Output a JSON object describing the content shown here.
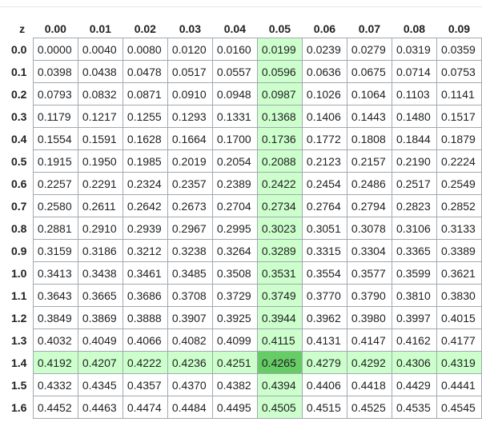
{
  "table": {
    "corner_label": "z",
    "col_headers": [
      "0.00",
      "0.01",
      "0.02",
      "0.03",
      "0.04",
      "0.05",
      "0.06",
      "0.07",
      "0.08",
      "0.09"
    ],
    "highlight": {
      "column_index": 5,
      "row_index": 14,
      "color_light": "#ccffcc",
      "color_strong": "#66cc66"
    },
    "rows": [
      {
        "z": "0.0",
        "values": [
          "0.0000",
          "0.0040",
          "0.0080",
          "0.0120",
          "0.0160",
          "0.0199",
          "0.0239",
          "0.0279",
          "0.0319",
          "0.0359"
        ]
      },
      {
        "z": "0.1",
        "values": [
          "0.0398",
          "0.0438",
          "0.0478",
          "0.0517",
          "0.0557",
          "0.0596",
          "0.0636",
          "0.0675",
          "0.0714",
          "0.0753"
        ]
      },
      {
        "z": "0.2",
        "values": [
          "0.0793",
          "0.0832",
          "0.0871",
          "0.0910",
          "0.0948",
          "0.0987",
          "0.1026",
          "0.1064",
          "0.1103",
          "0.1141"
        ]
      },
      {
        "z": "0.3",
        "values": [
          "0.1179",
          "0.1217",
          "0.1255",
          "0.1293",
          "0.1331",
          "0.1368",
          "0.1406",
          "0.1443",
          "0.1480",
          "0.1517"
        ]
      },
      {
        "z": "0.4",
        "values": [
          "0.1554",
          "0.1591",
          "0.1628",
          "0.1664",
          "0.1700",
          "0.1736",
          "0.1772",
          "0.1808",
          "0.1844",
          "0.1879"
        ]
      },
      {
        "z": "0.5",
        "values": [
          "0.1915",
          "0.1950",
          "0.1985",
          "0.2019",
          "0.2054",
          "0.2088",
          "0.2123",
          "0.2157",
          "0.2190",
          "0.2224"
        ]
      },
      {
        "z": "0.6",
        "values": [
          "0.2257",
          "0.2291",
          "0.2324",
          "0.2357",
          "0.2389",
          "0.2422",
          "0.2454",
          "0.2486",
          "0.2517",
          "0.2549"
        ]
      },
      {
        "z": "0.7",
        "values": [
          "0.2580",
          "0.2611",
          "0.2642",
          "0.2673",
          "0.2704",
          "0.2734",
          "0.2764",
          "0.2794",
          "0.2823",
          "0.2852"
        ]
      },
      {
        "z": "0.8",
        "values": [
          "0.2881",
          "0.2910",
          "0.2939",
          "0.2967",
          "0.2995",
          "0.3023",
          "0.3051",
          "0.3078",
          "0.3106",
          "0.3133"
        ]
      },
      {
        "z": "0.9",
        "values": [
          "0.3159",
          "0.3186",
          "0.3212",
          "0.3238",
          "0.3264",
          "0.3289",
          "0.3315",
          "0.3304",
          "0.3365",
          "0.3389"
        ]
      },
      {
        "z": "1.0",
        "values": [
          "0.3413",
          "0.3438",
          "0.3461",
          "0.3485",
          "0.3508",
          "0.3531",
          "0.3554",
          "0.3577",
          "0.3599",
          "0.3621"
        ]
      },
      {
        "z": "1.1",
        "values": [
          "0.3643",
          "0.3665",
          "0.3686",
          "0.3708",
          "0.3729",
          "0.3749",
          "0.3770",
          "0.3790",
          "0.3810",
          "0.3830"
        ]
      },
      {
        "z": "1.2",
        "values": [
          "0.3849",
          "0.3869",
          "0.3888",
          "0.3907",
          "0.3925",
          "0.3944",
          "0.3962",
          "0.3980",
          "0.3997",
          "0.4015"
        ]
      },
      {
        "z": "1.3",
        "values": [
          "0.4032",
          "0.4049",
          "0.4066",
          "0.4082",
          "0.4099",
          "0.4115",
          "0.4131",
          "0.4147",
          "0.4162",
          "0.4177"
        ]
      },
      {
        "z": "1.4",
        "values": [
          "0.4192",
          "0.4207",
          "0.4222",
          "0.4236",
          "0.4251",
          "0.4265",
          "0.4279",
          "0.4292",
          "0.4306",
          "0.4319"
        ]
      },
      {
        "z": "1.5",
        "values": [
          "0.4332",
          "0.4345",
          "0.4357",
          "0.4370",
          "0.4382",
          "0.4394",
          "0.4406",
          "0.4418",
          "0.4429",
          "0.4441"
        ]
      },
      {
        "z": "1.6",
        "values": [
          "0.4452",
          "0.4463",
          "0.4474",
          "0.4484",
          "0.4495",
          "0.4505",
          "0.4515",
          "0.4525",
          "0.4535",
          "0.4545"
        ]
      }
    ]
  }
}
